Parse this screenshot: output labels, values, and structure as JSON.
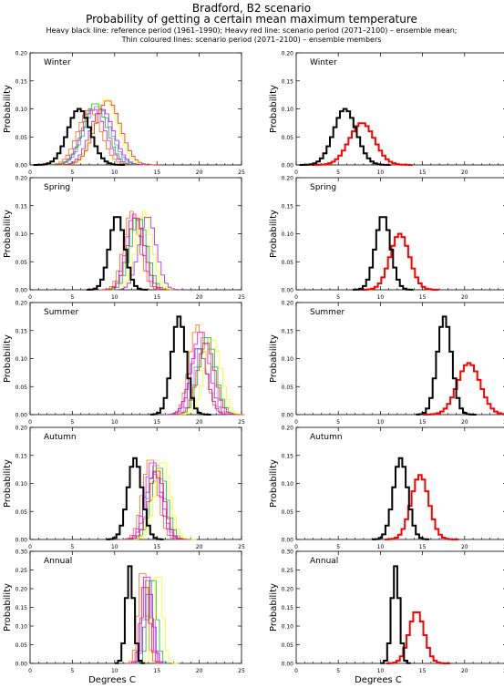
{
  "header": {
    "title": "Bradford, B2 scenario",
    "subtitle": "Probability of getting a certain mean maximum temperature",
    "legend_line1": "Heavy black line: reference period (1961–1990); Heavy red line: scenario period (2071–2100) – ensemble mean;",
    "legend_line2": "Thin coloured lines: scenario period (2071–2100) – ensemble members"
  },
  "axes": {
    "ylabel": "Probability",
    "xlabel": "Degrees C",
    "x_ticks": [
      "0",
      "5",
      "10",
      "15",
      "20",
      "25"
    ],
    "y_ticks_seasonal": [
      "0.00",
      "0.05",
      "0.10",
      "0.15",
      "0.20"
    ],
    "y_ticks_annual": [
      "0.00",
      "0.05",
      "0.10",
      "0.15",
      "0.20",
      "0.25",
      "0.30"
    ]
  },
  "colors": {
    "reference": "#000000",
    "scenario_mean": "#ff0000",
    "members": [
      "#ff6a00",
      "#ff00ff",
      "#7f7fff",
      "#00c800",
      "#ffff00",
      "#a020f0",
      "#ff2020"
    ]
  },
  "chart_data": [
    {
      "type": "area",
      "panel_label": "Winter",
      "column": "members",
      "xlim": [
        0,
        25
      ],
      "ylim": [
        0,
        0.2
      ],
      "reference": {
        "mean": 5.8,
        "sd": 1.35,
        "peak": 0.1
      },
      "series": [
        {
          "mean": 7.0,
          "sd": 1.4,
          "peak": 0.098
        },
        {
          "mean": 7.5,
          "sd": 1.4,
          "peak": 0.1
        },
        {
          "mean": 8.0,
          "sd": 1.5,
          "peak": 0.105
        },
        {
          "mean": 7.7,
          "sd": 1.4,
          "peak": 0.11
        },
        {
          "mean": 9.0,
          "sd": 1.4,
          "peak": 0.118
        },
        {
          "mean": 8.5,
          "sd": 1.4,
          "peak": 0.1
        },
        {
          "mean": 9.2,
          "sd": 1.5,
          "peak": 0.115
        }
      ]
    },
    {
      "type": "area",
      "panel_label": "Winter",
      "column": "mean",
      "xlim": [
        0,
        25
      ],
      "ylim": [
        0,
        0.2
      ],
      "reference": {
        "mean": 5.8,
        "sd": 1.35,
        "peak": 0.1
      },
      "scenario_mean": {
        "mean": 7.8,
        "sd": 1.5,
        "peak": 0.075
      }
    },
    {
      "type": "area",
      "panel_label": "Spring",
      "column": "members",
      "xlim": [
        0,
        25
      ],
      "ylim": [
        0,
        0.2
      ],
      "reference": {
        "mean": 10.3,
        "sd": 0.9,
        "peak": 0.133
      },
      "series": [
        {
          "mean": 12.0,
          "sd": 0.95,
          "peak": 0.14
        },
        {
          "mean": 12.3,
          "sd": 0.95,
          "peak": 0.135
        },
        {
          "mean": 12.6,
          "sd": 1.0,
          "peak": 0.13
        },
        {
          "mean": 12.9,
          "sd": 1.0,
          "peak": 0.128
        },
        {
          "mean": 13.5,
          "sd": 0.95,
          "peak": 0.14
        },
        {
          "mean": 13.9,
          "sd": 1.0,
          "peak": 0.132
        },
        {
          "mean": 12.5,
          "sd": 1.0,
          "peak": 0.13
        }
      ]
    },
    {
      "type": "area",
      "panel_label": "Spring",
      "column": "mean",
      "xlim": [
        0,
        25
      ],
      "ylim": [
        0,
        0.2
      ],
      "reference": {
        "mean": 10.3,
        "sd": 0.9,
        "peak": 0.133
      },
      "scenario_mean": {
        "mean": 12.3,
        "sd": 1.15,
        "peak": 0.1
      }
    },
    {
      "type": "area",
      "panel_label": "Summer",
      "column": "members",
      "xlim": [
        0,
        25
      ],
      "ylim": [
        0,
        0.2
      ],
      "reference": {
        "mean": 17.6,
        "sd": 0.85,
        "peak": 0.175
      },
      "series": [
        {
          "mean": 19.8,
          "sd": 0.95,
          "peak": 0.16
        },
        {
          "mean": 20.2,
          "sd": 1.0,
          "peak": 0.15
        },
        {
          "mean": 20.6,
          "sd": 1.0,
          "peak": 0.14
        },
        {
          "mean": 21.0,
          "sd": 1.0,
          "peak": 0.14
        },
        {
          "mean": 21.6,
          "sd": 1.0,
          "peak": 0.135
        },
        {
          "mean": 19.9,
          "sd": 1.0,
          "peak": 0.12
        },
        {
          "mean": 20.8,
          "sd": 1.0,
          "peak": 0.13
        }
      ]
    },
    {
      "type": "area",
      "panel_label": "Summer",
      "column": "mean",
      "xlim": [
        0,
        25
      ],
      "ylim": [
        0,
        0.2
      ],
      "reference": {
        "mean": 17.6,
        "sd": 0.85,
        "peak": 0.175
      },
      "scenario_mean": {
        "mean": 20.5,
        "sd": 1.35,
        "peak": 0.092
      }
    },
    {
      "type": "area",
      "panel_label": "Autumn",
      "column": "members",
      "xlim": [
        0,
        25
      ],
      "ylim": [
        0,
        0.2
      ],
      "reference": {
        "mean": 12.4,
        "sd": 0.85,
        "peak": 0.145
      },
      "series": [
        {
          "mean": 14.2,
          "sd": 0.9,
          "peak": 0.145
        },
        {
          "mean": 14.5,
          "sd": 0.9,
          "peak": 0.14
        },
        {
          "mean": 14.9,
          "sd": 0.9,
          "peak": 0.135
        },
        {
          "mean": 15.3,
          "sd": 0.9,
          "peak": 0.13
        },
        {
          "mean": 15.7,
          "sd": 0.9,
          "peak": 0.14
        },
        {
          "mean": 14.7,
          "sd": 0.95,
          "peak": 0.12
        },
        {
          "mean": 15.0,
          "sd": 0.9,
          "peak": 0.125
        }
      ]
    },
    {
      "type": "area",
      "panel_label": "Autumn",
      "column": "mean",
      "xlim": [
        0,
        25
      ],
      "ylim": [
        0,
        0.2
      ],
      "reference": {
        "mean": 12.4,
        "sd": 0.85,
        "peak": 0.145
      },
      "scenario_mean": {
        "mean": 14.7,
        "sd": 1.05,
        "peak": 0.115
      }
    },
    {
      "type": "area",
      "panel_label": "Annual",
      "column": "members",
      "xlim": [
        0,
        25
      ],
      "ylim": [
        0,
        0.3
      ],
      "reference": {
        "mean": 11.8,
        "sd": 0.45,
        "peak": 0.26
      },
      "series": [
        {
          "mean": 13.3,
          "sd": 0.5,
          "peak": 0.26
        },
        {
          "mean": 13.8,
          "sd": 0.5,
          "peak": 0.25
        },
        {
          "mean": 14.0,
          "sd": 0.5,
          "peak": 0.24
        },
        {
          "mean": 14.5,
          "sd": 0.5,
          "peak": 0.24
        },
        {
          "mean": 15.2,
          "sd": 0.5,
          "peak": 0.25
        },
        {
          "mean": 14.1,
          "sd": 0.5,
          "peak": 0.2
        },
        {
          "mean": 13.6,
          "sd": 0.5,
          "peak": 0.22
        }
      ]
    },
    {
      "type": "area",
      "panel_label": "Annual",
      "column": "mean",
      "xlim": [
        0,
        25
      ],
      "ylim": [
        0,
        0.3
      ],
      "reference": {
        "mean": 11.8,
        "sd": 0.45,
        "peak": 0.26
      },
      "scenario_mean": {
        "mean": 14.3,
        "sd": 0.9,
        "peak": 0.14
      }
    }
  ]
}
